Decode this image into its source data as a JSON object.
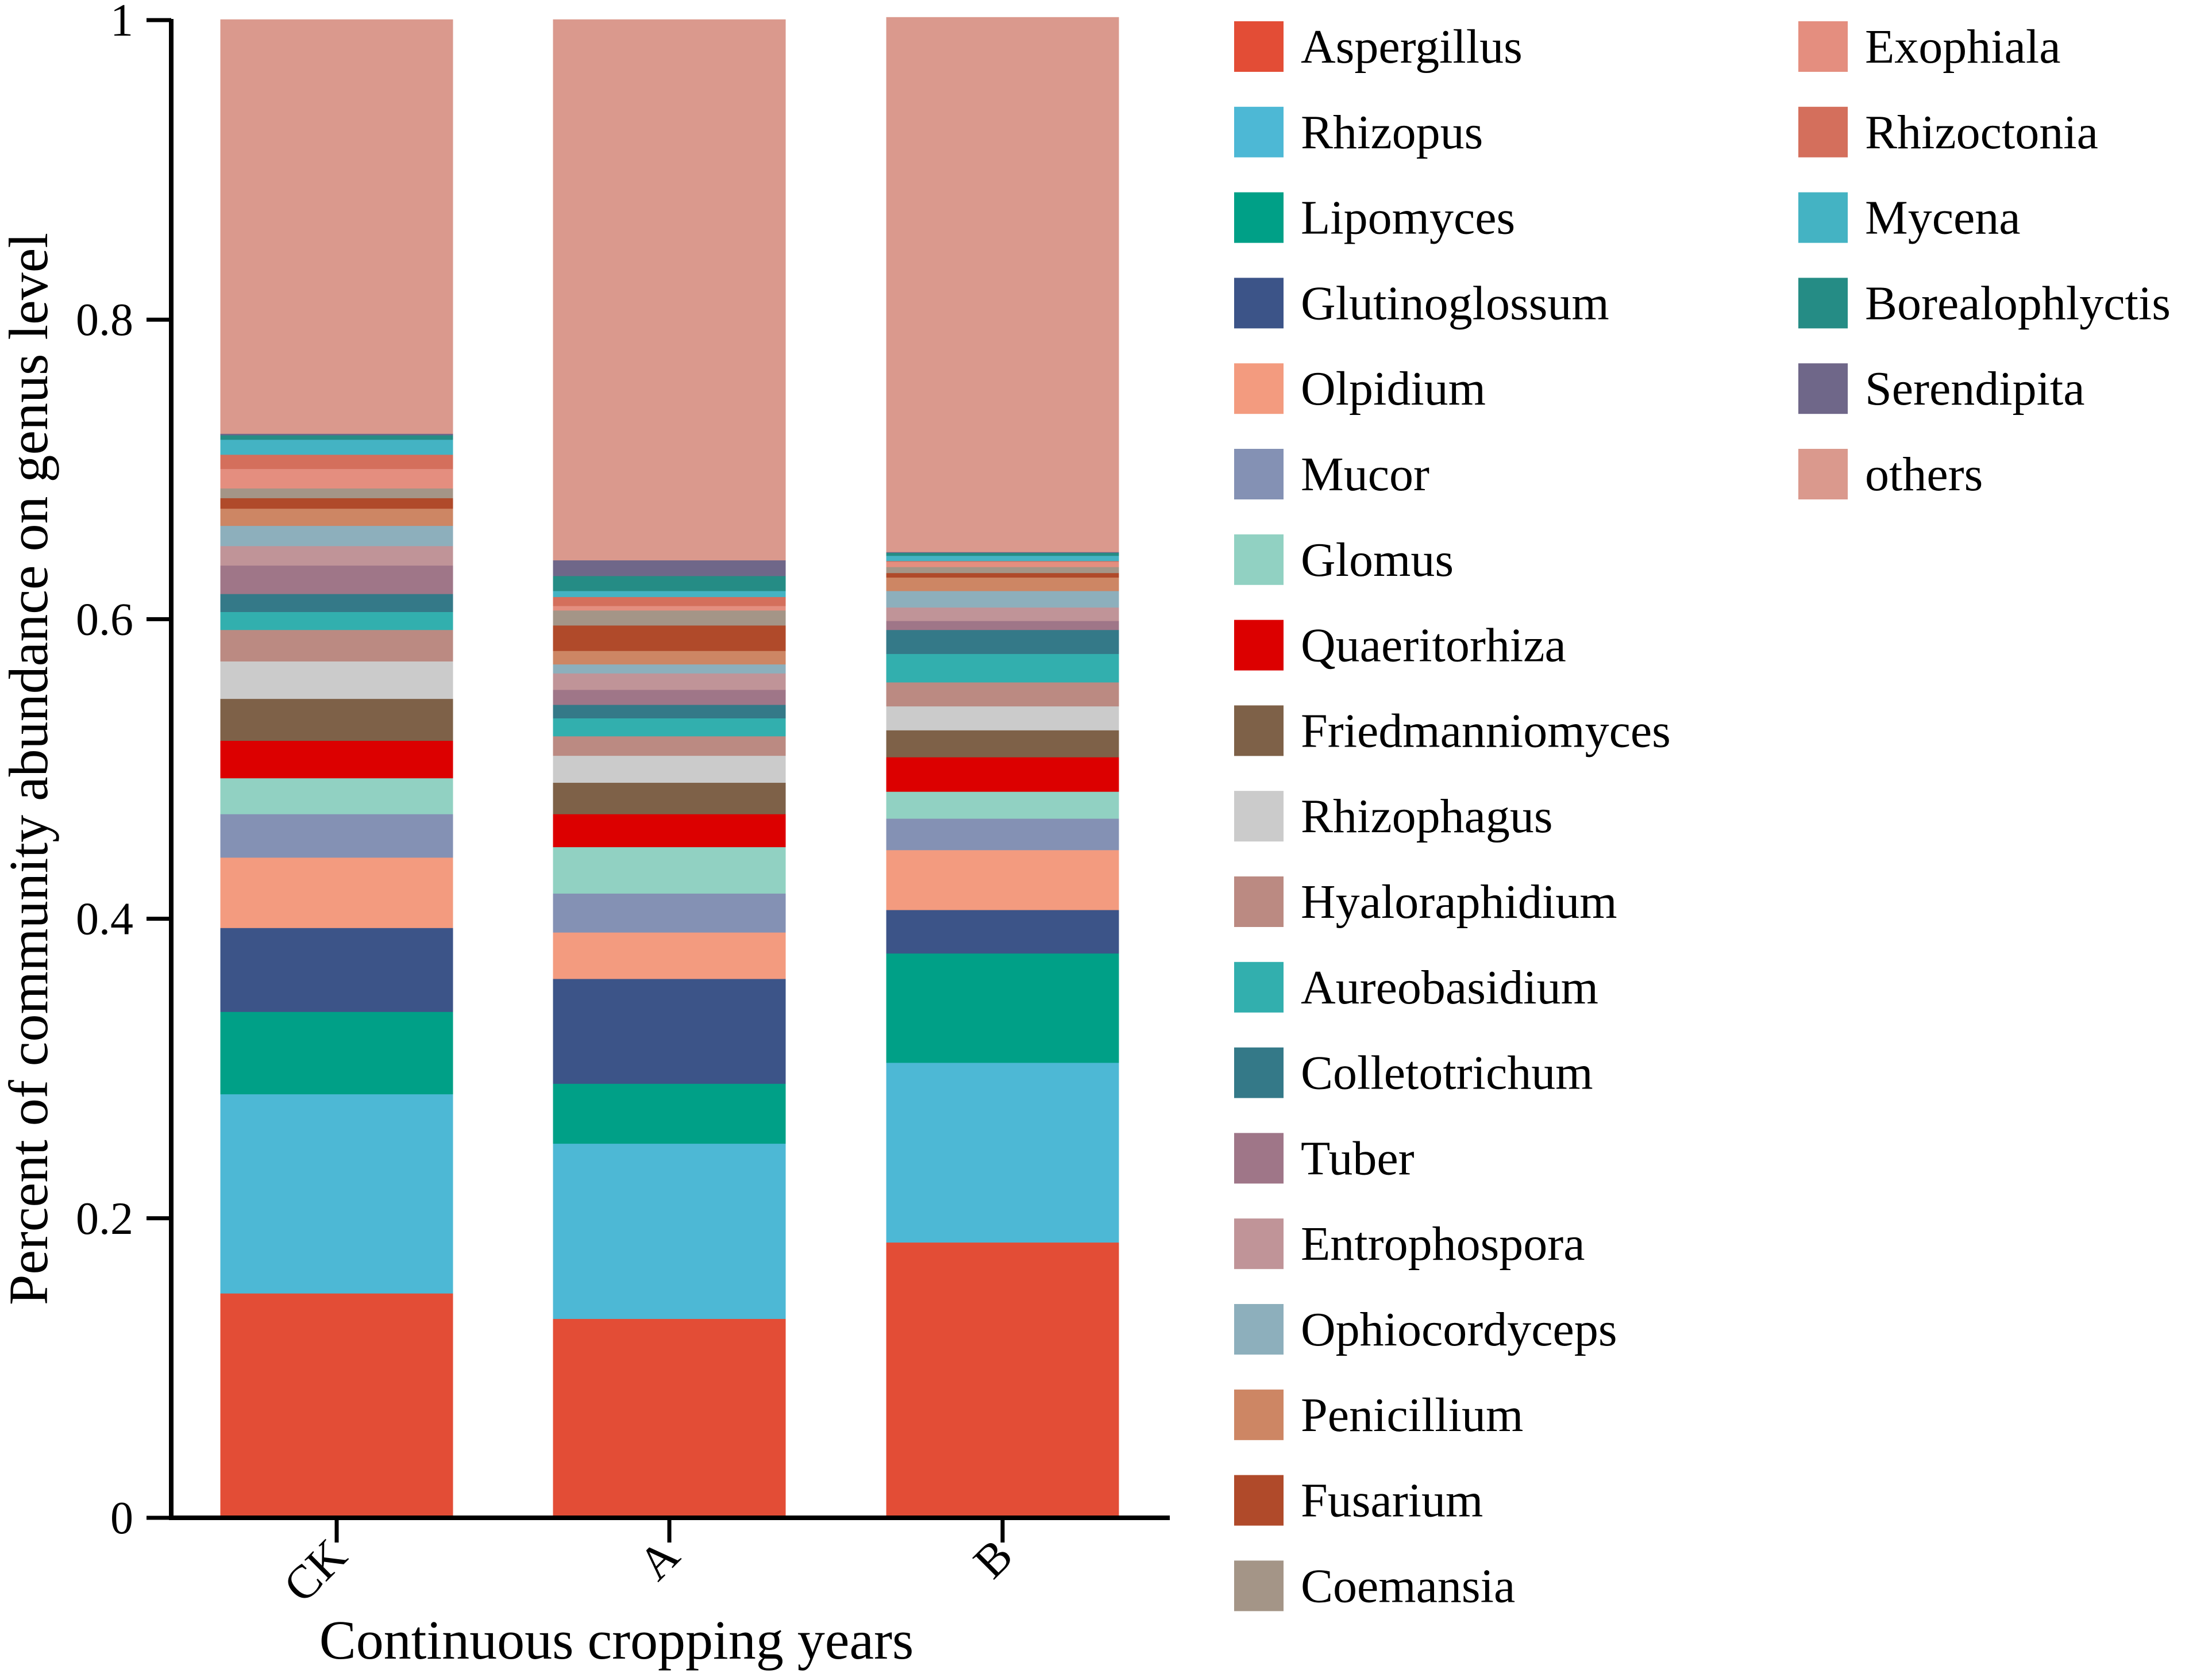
{
  "chart_data": {
    "type": "bar",
    "stacked": true,
    "xlabel": "Continuous cropping years",
    "ylabel": "Percent of community abundance on genus level",
    "ylim": [
      0,
      1
    ],
    "yticks": [
      "0",
      "0.2",
      "0.4",
      "0.6",
      "0.8",
      "1"
    ],
    "ytick_values": [
      0,
      0.2,
      0.4,
      0.6,
      0.8,
      1
    ],
    "categories": [
      "CK",
      "A",
      "B"
    ],
    "legend_position": "right",
    "series": [
      {
        "name": "Aspergillus",
        "color": "#E34D36",
        "values": [
          0.15,
          0.133,
          0.184
        ]
      },
      {
        "name": "Rhizopus",
        "color": "#4DB8D5",
        "values": [
          0.133,
          0.117,
          0.12
        ]
      },
      {
        "name": "Lipomyces",
        "color": "#00A087",
        "values": [
          0.055,
          0.04,
          0.073
        ]
      },
      {
        "name": "Glutinoglossum",
        "color": "#3C5488",
        "values": [
          0.056,
          0.07,
          0.029
        ]
      },
      {
        "name": "Olpidium",
        "color": "#F39B7F",
        "values": [
          0.047,
          0.031,
          0.04
        ]
      },
      {
        "name": "Mucor",
        "color": "#8491B4",
        "values": [
          0.029,
          0.026,
          0.021
        ]
      },
      {
        "name": "Glomus",
        "color": "#91D1C2",
        "values": [
          0.024,
          0.031,
          0.018
        ]
      },
      {
        "name": "Quaeritorhiza",
        "color": "#DC0000",
        "values": [
          0.025,
          0.022,
          0.023
        ]
      },
      {
        "name": "Friedmanniomyces",
        "color": "#7E6148",
        "values": [
          0.028,
          0.021,
          0.018
        ]
      },
      {
        "name": "Rhizophagus",
        "color": "#CBCBCB",
        "values": [
          0.025,
          0.018,
          0.016
        ]
      },
      {
        "name": "Hyaloraphidium",
        "color": "#BB8A82",
        "values": [
          0.021,
          0.013,
          0.016
        ]
      },
      {
        "name": "Aureobasidium",
        "color": "#32AFAE",
        "values": [
          0.012,
          0.012,
          0.019
        ]
      },
      {
        "name": "Colletotrichum",
        "color": "#347988",
        "values": [
          0.012,
          0.009,
          0.016
        ]
      },
      {
        "name": "Tuber",
        "color": "#9F7688",
        "values": [
          0.019,
          0.01,
          0.006
        ]
      },
      {
        "name": "Entrophospora",
        "color": "#C09498",
        "values": [
          0.013,
          0.011,
          0.009
        ]
      },
      {
        "name": "Ophiocordyceps",
        "color": "#8DAFBC",
        "values": [
          0.0135,
          0.006,
          0.011
        ]
      },
      {
        "name": "Penicillium",
        "color": "#CD8664",
        "values": [
          0.0115,
          0.009,
          0.009
        ]
      },
      {
        "name": "Fusarium",
        "color": "#B04A2A",
        "values": [
          0.007,
          0.017,
          0.003
        ]
      },
      {
        "name": "Coemansia",
        "color": "#A49587",
        "values": [
          0.0065,
          0.01,
          0.004
        ]
      },
      {
        "name": "Exophiala",
        "color": "#E48E7F",
        "values": [
          0.013,
          0.003,
          0.0035
        ]
      },
      {
        "name": "Rhizoctonia",
        "color": "#D46F5C",
        "values": [
          0.0095,
          0.006,
          0.0005
        ]
      },
      {
        "name": "Mycena",
        "color": "#44B3C3",
        "values": [
          0.01,
          0.004,
          0.0035
        ]
      },
      {
        "name": "Borealophlyctis",
        "color": "#258C85",
        "values": [
          0.003,
          0.01,
          0.002
        ]
      },
      {
        "name": "Serendipita",
        "color": "#6F6789",
        "values": [
          0.001,
          0.0105,
          0.0005
        ]
      },
      {
        "name": "others",
        "color": "#DA998D",
        "values": [
          0.2765,
          0.361,
          0.357
        ]
      }
    ]
  }
}
